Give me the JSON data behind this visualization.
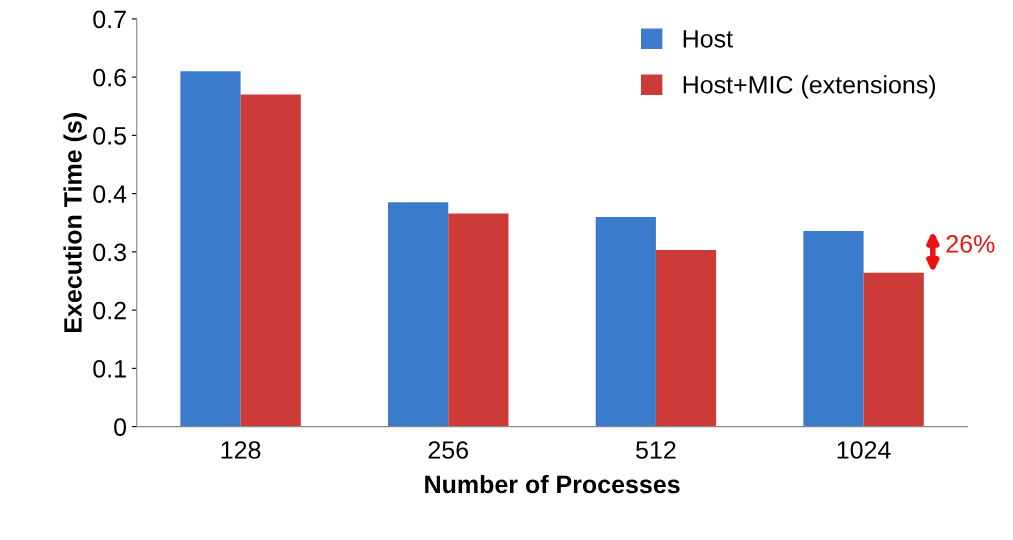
{
  "chart_data": {
    "type": "bar",
    "xlabel": "Number of Processes",
    "ylabel": "Execution Time (s)",
    "categories": [
      "128",
      "256",
      "512",
      "1024"
    ],
    "series": [
      {
        "name": "Host",
        "color": "#3b7bcc",
        "values": [
          0.61,
          0.385,
          0.36,
          0.336
        ]
      },
      {
        "name": "Host+MIC (extensions)",
        "color": "#cc3b38",
        "values": [
          0.57,
          0.366,
          0.303,
          0.264
        ]
      }
    ],
    "ylim": [
      0,
      0.7
    ],
    "yticks": [
      {
        "value": 0,
        "label": "0"
      },
      0.1,
      0.2,
      0.3,
      0.4,
      0.5,
      0.6,
      0.7
    ],
    "grid": false,
    "legend": "top right",
    "annotations": [
      "26%"
    ]
  }
}
